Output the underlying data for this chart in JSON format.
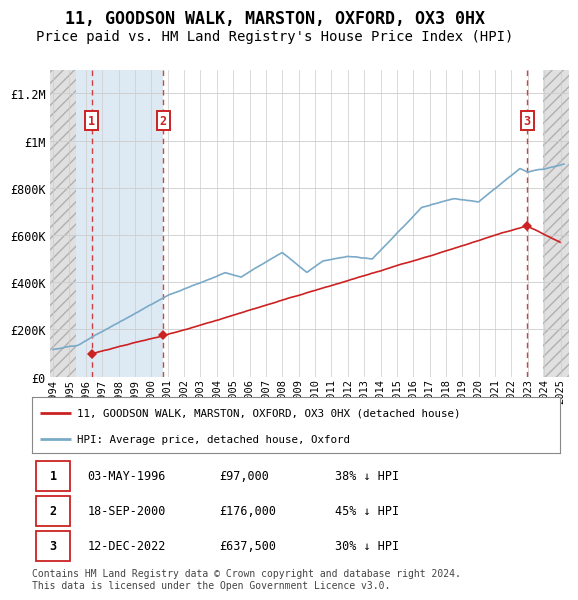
{
  "title": "11, GOODSON WALK, MARSTON, OXFORD, OX3 0HX",
  "subtitle": "Price paid vs. HM Land Registry's House Price Index (HPI)",
  "title_fontsize": 12,
  "subtitle_fontsize": 10,
  "ylim": [
    0,
    1300000
  ],
  "yticks": [
    0,
    200000,
    400000,
    600000,
    800000,
    1000000,
    1200000
  ],
  "ytick_labels": [
    "£0",
    "£200K",
    "£400K",
    "£600K",
    "£800K",
    "£1M",
    "£1.2M"
  ],
  "xmin": 1993.8,
  "xmax": 2025.5,
  "hatch_left_end": 1995.4,
  "hatch_right_start": 2023.92,
  "shade_region": [
    1995.4,
    2000.73
  ],
  "transactions": [
    {
      "date_num": 1996.35,
      "price": 97000,
      "label": "1"
    },
    {
      "date_num": 2000.73,
      "price": 176000,
      "label": "2"
    },
    {
      "date_num": 2022.95,
      "price": 637500,
      "label": "3"
    }
  ],
  "vline_dates": [
    1996.35,
    2000.73,
    2022.95
  ],
  "legend_entries": [
    "11, GOODSON WALK, MARSTON, OXFORD, OX3 0HX (detached house)",
    "HPI: Average price, detached house, Oxford"
  ],
  "table_rows": [
    [
      "1",
      "03-MAY-1996",
      "£97,000",
      "38% ↓ HPI"
    ],
    [
      "2",
      "18-SEP-2000",
      "£176,000",
      "45% ↓ HPI"
    ],
    [
      "3",
      "12-DEC-2022",
      "£637,500",
      "30% ↓ HPI"
    ]
  ],
  "footnote": "Contains HM Land Registry data © Crown copyright and database right 2024.\nThis data is licensed under the Open Government Licence v3.0.",
  "line_color_property": "#cc2222",
  "line_color_hpi": "#7aaac8",
  "hatch_facecolor": "#e0e0e0",
  "hatch_edgecolor": "#b0b0b0",
  "shade_color": "#ddeaf4",
  "grid_color": "#cccccc",
  "background_color": "#ffffff"
}
